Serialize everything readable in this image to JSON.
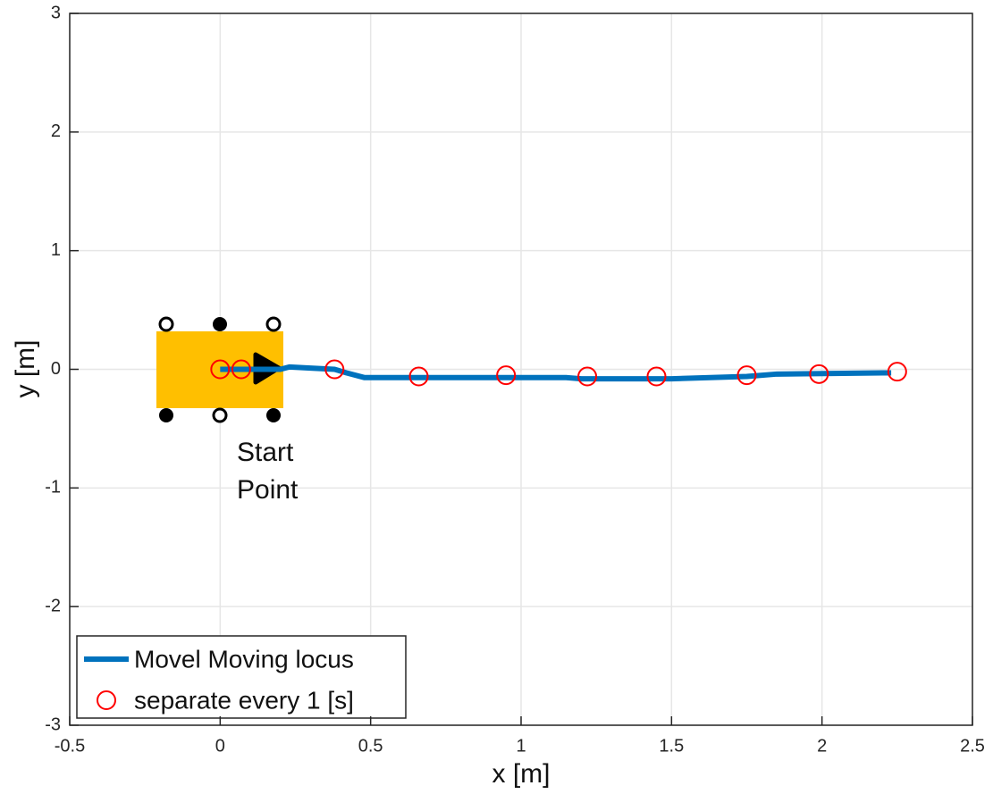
{
  "chart_data": {
    "type": "line",
    "xlabel": "x [m]",
    "ylabel": "y [m]",
    "xlim": [
      -0.5,
      2.5
    ],
    "xticks": [
      -0.5,
      0,
      0.5,
      1,
      1.5,
      2,
      2.5
    ],
    "ylim": [
      -3,
      3
    ],
    "yticks": [
      -3,
      -2,
      -1,
      0,
      1,
      2,
      3
    ],
    "grid": true,
    "legend": "lower left",
    "annotation": [
      "Start",
      "Point"
    ],
    "series": [
      {
        "name": "Movel Moving locus",
        "color": "#0072bd",
        "style": "line",
        "x": [
          0,
          0.2,
          0.23,
          0.3,
          0.38,
          0.42,
          0.48,
          0.7,
          1.15,
          1.2,
          1.5,
          1.75,
          1.85,
          2.2,
          2.23
        ],
        "values": [
          0,
          0,
          0.02,
          0.01,
          0,
          -0.03,
          -0.07,
          -0.07,
          -0.07,
          -0.08,
          -0.08,
          -0.06,
          -0.04,
          -0.03,
          -0.03
        ]
      },
      {
        "name": "separate every 1 [s]",
        "color": "#ff0000",
        "style": "marker",
        "x": [
          0,
          0.07,
          0.38,
          0.66,
          0.95,
          1.22,
          1.45,
          1.75,
          1.99,
          2.25
        ],
        "values": [
          0,
          0,
          0,
          -0.06,
          -0.05,
          -0.06,
          -0.06,
          -0.05,
          -0.04,
          -0.02
        ]
      }
    ]
  }
}
